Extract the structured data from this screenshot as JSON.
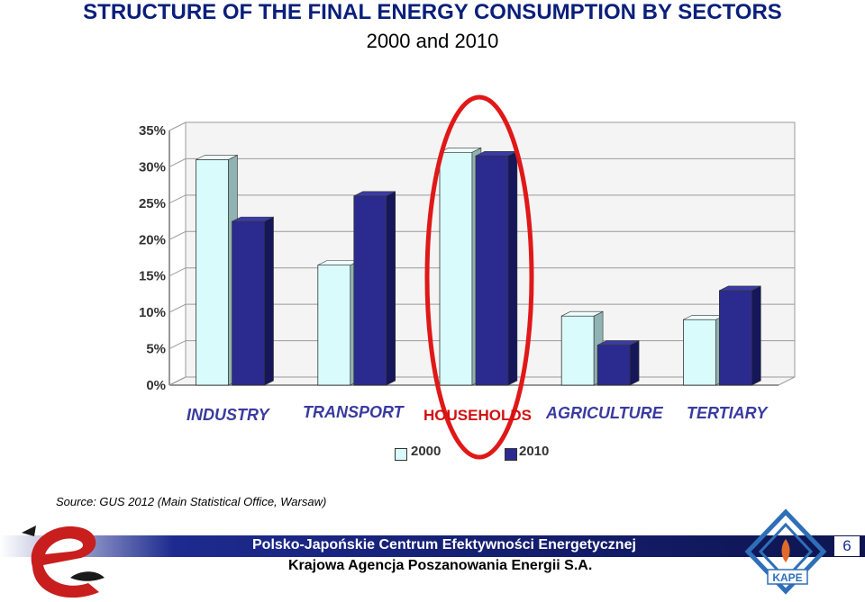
{
  "header": {
    "title_line1": "STRUCTURE OF THE FINAL ENERGY CONSUMPTION BY SECTORS",
    "title_line2": "2000 and 2010"
  },
  "chart_data": {
    "type": "bar",
    "categories": [
      "INDUSTRY",
      "TRANSPORT",
      "HOUSEHOLDS",
      "AGRICULTURE",
      "TERTIARY"
    ],
    "series": [
      {
        "name": "2000",
        "values": [
          31,
          16.5,
          32,
          9.5,
          9
        ]
      },
      {
        "name": "2010",
        "values": [
          22.5,
          26,
          31.5,
          5.5,
          13
        ]
      }
    ],
    "ylim": [
      0,
      35
    ],
    "yticks": [
      "0%",
      "5%",
      "10%",
      "15%",
      "20%",
      "25%",
      "30%",
      "35%"
    ],
    "grid": true,
    "legend_position": "bottom",
    "highlighted_category": "HOUSEHOLDS",
    "colors": {
      "2000": "#d9fbfb",
      "2010": "#2b2b8f",
      "highlight": "#e01818",
      "grid": "#9a9a9a"
    }
  },
  "source": "Source: GUS 2012 (Main Statistical Office, Warsaw)",
  "footer": {
    "line1": "Polsko-Japońskie Centrum Efektywności Energetycznej",
    "line2": "Krajowa Agencja Poszanowania Energii S.A.",
    "page_number": "6",
    "logo_right_text": "KAPE"
  }
}
